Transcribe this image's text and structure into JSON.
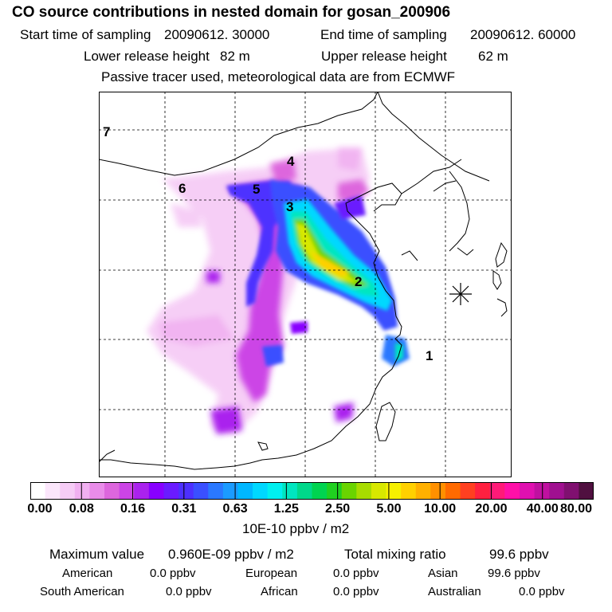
{
  "header": {
    "title": "CO  source contributions in nested domain for gosan_200906",
    "start_label": "Start time of sampling",
    "start_value": "20090612. 30000",
    "end_label": "End time of sampling",
    "end_value": "20090612. 60000",
    "lower_label": "Lower release height",
    "lower_value": "82 m",
    "upper_label": "Upper release height",
    "upper_value": "62 m",
    "tracer_note": "Passive tracer used, meteorological data are from ECMWF"
  },
  "map": {
    "region_labels": [
      "1",
      "2",
      "3",
      "4",
      "5",
      "6",
      "7"
    ],
    "receptor_marker": "star-marker"
  },
  "colorbar": {
    "ticks": [
      "0.00",
      "0.08",
      "0.16",
      "0.31",
      "0.63",
      "1.25",
      "2.50",
      "5.00",
      "10.00",
      "20.00",
      "40.00",
      "80.00"
    ],
    "unit": "10E-10 ppbv / m2",
    "colors": [
      "#ffffff",
      "#fbe6fb",
      "#f6ccf6",
      "#f1b0f1",
      "#e98ce9",
      "#dd66dd",
      "#cc44e6",
      "#aa22ee",
      "#8800ff",
      "#6a1bff",
      "#4d30ff",
      "#3a50ff",
      "#2a78ff",
      "#1b9bff",
      "#00b7ff",
      "#00d8ff",
      "#00f0f0",
      "#00e6c0",
      "#00d88a",
      "#00d450",
      "#20d020",
      "#6ad400",
      "#a8dc00",
      "#d8e800",
      "#f6f000",
      "#ffd000",
      "#ffb000",
      "#ff9000",
      "#ff6a00",
      "#ff4020",
      "#ff2040",
      "#ff1a78",
      "#ff10a8",
      "#e010b0",
      "#c010a0",
      "#a01090",
      "#801070",
      "#501040"
    ]
  },
  "summary": {
    "max_label": "Maximum value",
    "max_value": "0.960E-09 ppbv / m2",
    "total_label": "Total mixing ratio",
    "total_value": "99.6 ppbv",
    "regions": [
      {
        "name": "American",
        "value": "0.0 ppbv"
      },
      {
        "name": "European",
        "value": "0.0 ppbv"
      },
      {
        "name": "Asian",
        "value": "99.6 ppbv"
      },
      {
        "name": "South American",
        "value": "0.0 ppbv"
      },
      {
        "name": "African",
        "value": "0.0 ppbv"
      },
      {
        "name": "Australian",
        "value": "0.0 ppbv"
      }
    ]
  }
}
